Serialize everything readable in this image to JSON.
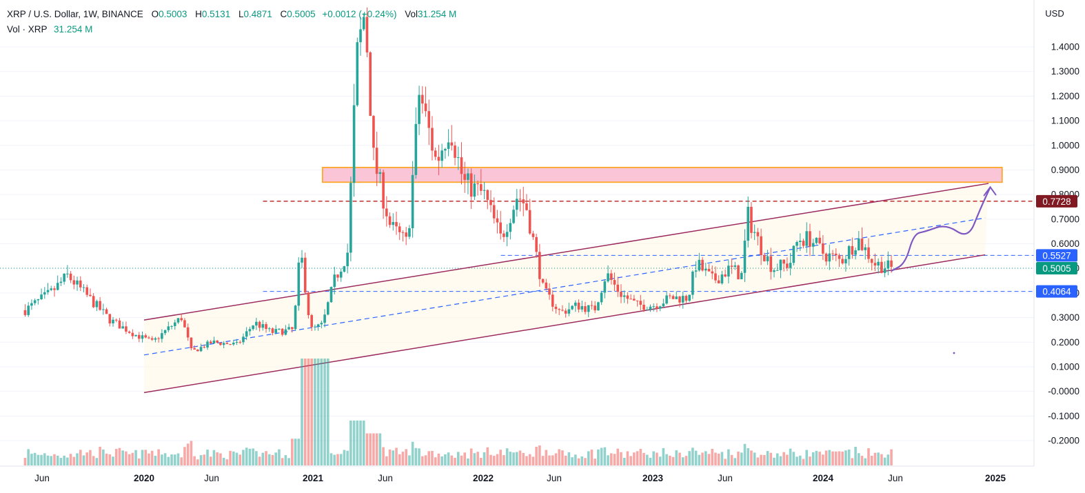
{
  "legend": {
    "symbol": "XRP / U.S. Dollar, 1W, BINANCE",
    "open_label": "O",
    "open": "0.5003",
    "high_label": "H",
    "high": "0.5131",
    "low_label": "L",
    "low": "0.4871",
    "close_label": "C",
    "close": "0.5005",
    "change": "+0.0012 (+0.24%)",
    "vol_label": "Vol",
    "vol_value": "31.254 M",
    "vol_series_label": "Vol · XRP",
    "vol_series_value": "31.254 M"
  },
  "colors": {
    "up": "#26a69a",
    "down": "#ef5350",
    "channel": "#9c2a5e",
    "midline": "#2962ff",
    "zone_fill": "#f8bbd0",
    "zone_border": "#ffa726",
    "projection": "#7e57c2",
    "resistance": "#b71c1c"
  },
  "chart_data": {
    "type": "candlestick",
    "y_axis": {
      "unit": "USD",
      "min": -0.2,
      "max": 1.4,
      "ticks": [
        "1.4000",
        "1.3000",
        "1.2000",
        "1.1000",
        "1.0000",
        "0.9000",
        "0.8000",
        "0.7000",
        "0.6000",
        "0.5000",
        "0.4000",
        "0.3000",
        "0.2000",
        "0.1000",
        "-0.0000",
        "-0.1000",
        "-0.2000"
      ]
    },
    "x_axis": {
      "ticks": [
        "Jun",
        "2020",
        "Jun",
        "2021",
        "Jun",
        "2022",
        "Jun",
        "2023",
        "Jun",
        "2024",
        "Jun",
        "2025"
      ]
    },
    "price_labels": [
      {
        "value": 0.7728,
        "text": "0.7728",
        "color": "#801922"
      },
      {
        "value": 0.5527,
        "text": "0.5527",
        "color": "#2962ff"
      },
      {
        "value": 0.5005,
        "text": "0.5005",
        "color": "#089981"
      },
      {
        "value": 0.4064,
        "text": "0.4064",
        "color": "#2962ff"
      }
    ],
    "anchors": [
      [
        2019.3,
        0.33
      ],
      [
        2019.45,
        0.4
      ],
      [
        2019.55,
        0.47
      ],
      [
        2019.62,
        0.42
      ],
      [
        2019.8,
        0.29
      ],
      [
        2019.95,
        0.23
      ],
      [
        2020.05,
        0.2
      ],
      [
        2020.15,
        0.26
      ],
      [
        2020.22,
        0.3
      ],
      [
        2020.28,
        0.16
      ],
      [
        2020.4,
        0.2
      ],
      [
        2020.55,
        0.19
      ],
      [
        2020.65,
        0.28
      ],
      [
        2020.75,
        0.24
      ],
      [
        2020.88,
        0.25
      ],
      [
        2020.92,
        0.58
      ],
      [
        2020.98,
        0.25
      ],
      [
        2021.05,
        0.27
      ],
      [
        2021.12,
        0.45
      ],
      [
        2021.2,
        0.57
      ],
      [
        2021.25,
        1.35
      ],
      [
        2021.3,
        1.55
      ],
      [
        2021.35,
        0.95
      ],
      [
        2021.45,
        0.67
      ],
      [
        2021.55,
        0.6
      ],
      [
        2021.62,
        1.22
      ],
      [
        2021.72,
        0.93
      ],
      [
        2021.8,
        1.08
      ],
      [
        2021.88,
        0.85
      ],
      [
        2022.0,
        0.8
      ],
      [
        2022.1,
        0.62
      ],
      [
        2022.2,
        0.8
      ],
      [
        2022.25,
        0.75
      ],
      [
        2022.35,
        0.41
      ],
      [
        2022.45,
        0.32
      ],
      [
        2022.55,
        0.35
      ],
      [
        2022.65,
        0.33
      ],
      [
        2022.72,
        0.48
      ],
      [
        2022.8,
        0.4
      ],
      [
        2022.9,
        0.35
      ],
      [
        2023.0,
        0.35
      ],
      [
        2023.1,
        0.38
      ],
      [
        2023.2,
        0.38
      ],
      [
        2023.25,
        0.52
      ],
      [
        2023.35,
        0.45
      ],
      [
        2023.45,
        0.5
      ],
      [
        2023.52,
        0.47
      ],
      [
        2023.55,
        0.72
      ],
      [
        2023.62,
        0.6
      ],
      [
        2023.7,
        0.5
      ],
      [
        2023.8,
        0.52
      ],
      [
        2023.85,
        0.62
      ],
      [
        2023.92,
        0.62
      ],
      [
        2024.0,
        0.56
      ],
      [
        2024.1,
        0.53
      ],
      [
        2024.2,
        0.62
      ],
      [
        2024.3,
        0.52
      ],
      [
        2024.4,
        0.5
      ]
    ],
    "volume_pulses": [
      [
        2020.97,
        1.0
      ],
      [
        2021.05,
        1.0
      ],
      [
        2021.25,
        0.42
      ],
      [
        2021.35,
        0.3
      ],
      [
        2020.92,
        0.25
      ],
      [
        2023.55,
        0.12
      ]
    ],
    "annotations": {
      "supply_zone": {
        "x1": 2021.05,
        "x2": 2025.05,
        "y1": 0.85,
        "y2": 0.91
      },
      "channel_upper": [
        [
          2020.0,
          0.29
        ],
        [
          2024.97,
          0.845
        ]
      ],
      "channel_lower": [
        [
          2020.0,
          -0.005
        ],
        [
          2024.95,
          0.555
        ]
      ],
      "midline": [
        [
          2020.0,
          0.148
        ],
        [
          2024.95,
          0.705
        ]
      ],
      "resistance_line": {
        "value": 0.7728,
        "x1": 2020.7
      },
      "support_upper": {
        "value": 0.5527,
        "x1": 2022.1
      },
      "support_lower": {
        "value": 0.4064,
        "x1": 2020.7
      },
      "last_price": {
        "value": 0.5005
      },
      "projection": [
        [
          2024.4,
          0.49
        ],
        [
          2024.48,
          0.52
        ],
        [
          2024.53,
          0.64
        ],
        [
          2024.6,
          0.65
        ],
        [
          2024.72,
          0.68
        ],
        [
          2024.85,
          0.62
        ],
        [
          2024.92,
          0.74
        ],
        [
          2024.98,
          0.83
        ]
      ]
    }
  }
}
